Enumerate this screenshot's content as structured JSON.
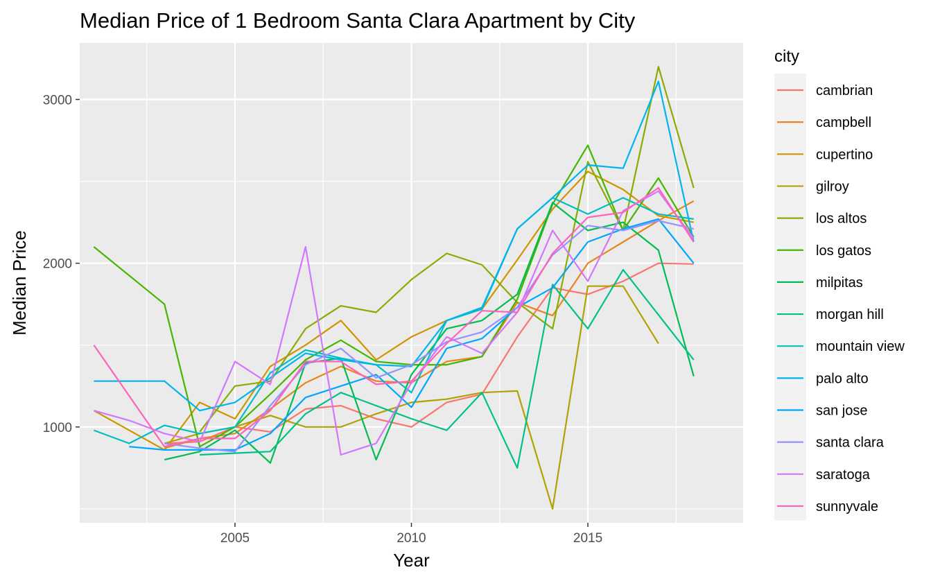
{
  "chart_data": {
    "type": "line",
    "title": "Median Price of 1 Bedroom Santa Clara Apartment by City",
    "xlabel": "Year",
    "ylabel": "Median Price",
    "xlim": [
      2000.6,
      2019.4
    ],
    "ylim": [
      415,
      3345
    ],
    "x_ticks": [
      2005,
      2010,
      2015
    ],
    "y_ticks": [
      1000,
      2000,
      3000
    ],
    "x_tick_labels": [
      "2005",
      "2010",
      "2015"
    ],
    "y_tick_labels": [
      "1000",
      "2000",
      "3000"
    ],
    "grid": true,
    "legend_title": "city",
    "legend_position": "right",
    "series": [
      {
        "name": "cambrian",
        "color": "#F8766D",
        "x": [
          2003,
          2004,
          2005,
          2006,
          2007,
          2008,
          2009,
          2010,
          2011,
          2012,
          2013,
          2014,
          2015,
          2016,
          2017,
          2018
        ],
        "values": [
          900,
          910,
          1000,
          970,
          1110,
          1130,
          1050,
          1000,
          1150,
          1200,
          1550,
          1850,
          1810,
          1890,
          2000,
          1995
        ]
      },
      {
        "name": "campbell",
        "color": "#E7851E",
        "x": [
          2003,
          2004,
          2005,
          2006,
          2007,
          2008,
          2009,
          2010,
          2011,
          2012,
          2013,
          2014,
          2015,
          2016,
          2017,
          2018
        ],
        "values": [
          870,
          930,
          960,
          1110,
          1270,
          1370,
          1280,
          1270,
          1400,
          1430,
          1760,
          1680,
          2000,
          2130,
          2260,
          2380
        ]
      },
      {
        "name": "cupertino",
        "color": "#D09400",
        "x": [
          2001,
          2003,
          2004,
          2005,
          2006,
          2007,
          2008,
          2009,
          2010,
          2011,
          2012,
          2013,
          2014,
          2015,
          2016,
          2017,
          2018
        ],
        "values": [
          1100,
          860,
          1150,
          1050,
          1370,
          1500,
          1650,
          1410,
          1550,
          1650,
          1720,
          2020,
          2330,
          2560,
          2450,
          2290,
          2250
        ]
      },
      {
        "name": "gilroy",
        "color": "#B2A100",
        "x": [
          2003,
          2004,
          2005,
          2006,
          2007,
          2008,
          2009,
          2010,
          2011,
          2012,
          2013,
          2014,
          2015,
          2016,
          2017
        ],
        "values": [
          900,
          960,
          1000,
          1070,
          1000,
          1000,
          1080,
          1150,
          1170,
          1210,
          1220,
          500,
          1860,
          1860,
          1510
        ]
      },
      {
        "name": "los altos",
        "color": "#89AC00",
        "x": [
          2004,
          2005,
          2006,
          2007,
          2008,
          2009,
          2010,
          2011,
          2012,
          2013,
          2014,
          2015,
          2016,
          2017,
          2018
        ],
        "values": [
          970,
          1250,
          1280,
          1600,
          1740,
          1700,
          1900,
          2060,
          1990,
          1760,
          1600,
          2620,
          2200,
          3200,
          2460
        ]
      },
      {
        "name": "los gatos",
        "color": "#45B500",
        "x": [
          2001,
          2003,
          2004,
          2005,
          2006,
          2007,
          2008,
          2009,
          2010,
          2011,
          2012,
          2013,
          2014,
          2015,
          2016,
          2017,
          2018
        ],
        "values": [
          2100,
          1750,
          880,
          1000,
          1200,
          1410,
          1530,
          1400,
          1380,
          1380,
          1430,
          1780,
          2360,
          2720,
          2200,
          2520,
          2160
        ]
      },
      {
        "name": "milpitas",
        "color": "#00BC51",
        "x": [
          2003,
          2004,
          2005,
          2006,
          2007,
          2008,
          2009,
          2010,
          2011,
          2012,
          2013,
          2014,
          2015,
          2016,
          2017,
          2018
        ],
        "values": [
          800,
          850,
          980,
          780,
          1390,
          1420,
          800,
          1320,
          1600,
          1650,
          1810,
          2370,
          2200,
          2250,
          2080,
          1310
        ]
      },
      {
        "name": "morgan hill",
        "color": "#00C08B",
        "x": [
          2004,
          2005,
          2006,
          2007,
          2008,
          2009,
          2010,
          2011,
          2012,
          2013,
          2014,
          2015,
          2016,
          2018
        ],
        "values": [
          830,
          840,
          850,
          1080,
          1210,
          1130,
          1050,
          980,
          1210,
          750,
          1870,
          1600,
          1960,
          1410
        ]
      },
      {
        "name": "mountain view",
        "color": "#00BFC4",
        "x": [
          2001,
          2002,
          2003,
          2004,
          2005,
          2006,
          2007,
          2008,
          2009,
          2010,
          2011,
          2012,
          2013,
          2014,
          2015,
          2016,
          2017,
          2018
        ],
        "values": [
          980,
          900,
          1010,
          960,
          1000,
          1330,
          1470,
          1420,
          1380,
          1210,
          1650,
          1720,
          2210,
          2400,
          2300,
          2400,
          2300,
          2270
        ]
      },
      {
        "name": "palo alto",
        "color": "#00B4F0",
        "x": [
          2001,
          2003,
          2004,
          2005,
          2006,
          2007,
          2008,
          2009,
          2010,
          2011,
          2012,
          2013,
          2014,
          2015,
          2016,
          2017,
          2018
        ],
        "values": [
          1280,
          1280,
          1100,
          1150,
          1300,
          1450,
          1410,
          1380,
          1370,
          1650,
          1730,
          2210,
          2400,
          2600,
          2580,
          3110,
          2130
        ]
      },
      {
        "name": "san jose",
        "color": "#00A5FF",
        "x": [
          2002,
          2003,
          2004,
          2005,
          2006,
          2007,
          2008,
          2009,
          2010,
          2011,
          2012,
          2013,
          2014,
          2015,
          2016,
          2017,
          2018
        ],
        "values": [
          880,
          860,
          860,
          860,
          960,
          1180,
          1250,
          1320,
          1120,
          1480,
          1540,
          1730,
          1850,
          2130,
          2210,
          2270,
          2000
        ]
      },
      {
        "name": "santa clara",
        "color": "#9590FF",
        "x": [
          2003,
          2004,
          2005,
          2006,
          2007,
          2008,
          2009,
          2010,
          2011,
          2012,
          2013,
          2014,
          2015,
          2016,
          2017,
          2018
        ],
        "values": [
          900,
          870,
          850,
          1130,
          1380,
          1480,
          1300,
          1380,
          1520,
          1580,
          1730,
          2050,
          2230,
          2200,
          2260,
          2210
        ]
      },
      {
        "name": "saratoga",
        "color": "#D376FF",
        "x": [
          2001,
          2002,
          2003,
          2004,
          2005,
          2006,
          2007,
          2008,
          2009,
          2010,
          2011,
          2012,
          2013,
          2014,
          2015,
          2016,
          2017,
          2018
        ],
        "values": [
          1100,
          1040,
          960,
          910,
          1400,
          1260,
          2100,
          830,
          900,
          1270,
          1550,
          1450,
          1700,
          2200,
          1890,
          2320,
          2440,
          2150
        ]
      },
      {
        "name": "sunnyvale",
        "color": "#FF62BC",
        "x": [
          2001,
          2003,
          2004,
          2005,
          2006,
          2007,
          2008,
          2009,
          2010,
          2011,
          2012,
          2013,
          2014,
          2015,
          2016,
          2017,
          2018
        ],
        "values": [
          1500,
          880,
          930,
          930,
          1100,
          1400,
          1400,
          1260,
          1280,
          1510,
          1710,
          1700,
          2060,
          2280,
          2310,
          2460,
          2130
        ]
      }
    ]
  }
}
